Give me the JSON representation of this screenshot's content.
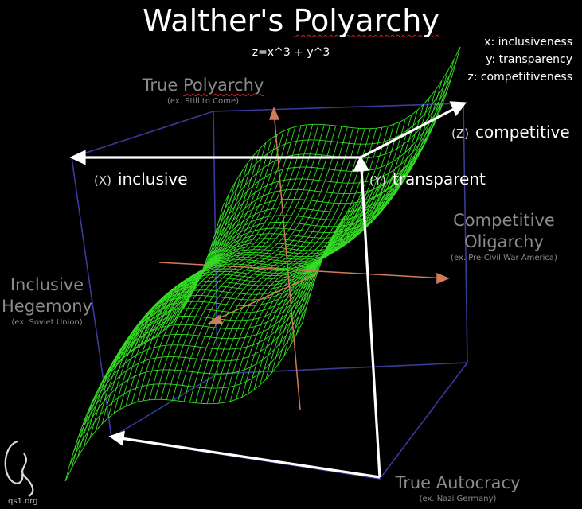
{
  "title": {
    "pre": "Walther's ",
    "underlined": "Polyarchy"
  },
  "equation": "z=x^3 + y^3",
  "legend": [
    "x: inclusiveness",
    "y: transparency",
    "z: competitiveness"
  ],
  "corners": {
    "top": {
      "pre": "True ",
      "underlined": "Polyarchy",
      "example": "(ex. Still to Come)"
    },
    "right": {
      "line1": "Competitive",
      "line2": "Oligarchy",
      "example": "(ex. Pre-Civil War America)"
    },
    "left": {
      "line1": "Inclusive",
      "line2": "Hegemony",
      "example": "(ex. Soviet Union)"
    },
    "bottom": {
      "label": "True Autocracy",
      "example": "(ex. Nazi Germany)"
    }
  },
  "axes": {
    "x": {
      "prefix": "(X)",
      "label": "inclusive"
    },
    "y": {
      "prefix": "(Y)",
      "label": "transparent"
    },
    "z": {
      "prefix": "(Z)",
      "label": "competitive"
    }
  },
  "logo": {
    "text": "qs1.org"
  },
  "colors": {
    "background": "#000000",
    "surface": "#33dd22",
    "box": "#3a3a9a",
    "arrows": "#ffffff",
    "coord_axes": "#d07a5a",
    "corner_text": "#8a8a8a"
  }
}
